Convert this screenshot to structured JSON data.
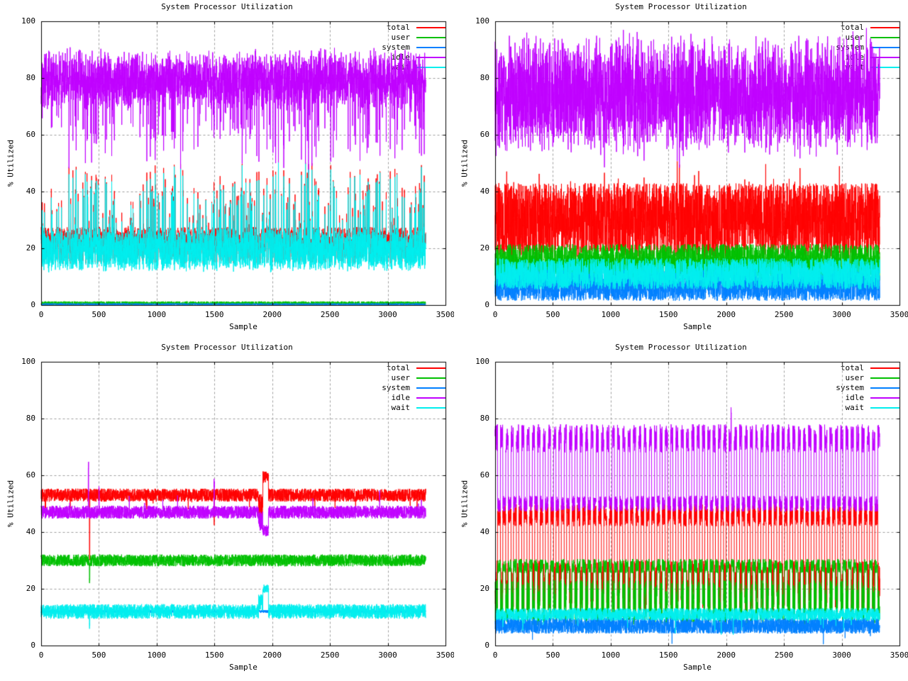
{
  "page": {
    "background": "#ffffff"
  },
  "palette": {
    "total": "#ff0000",
    "user": "#00c000",
    "system": "#0080ff",
    "idle": "#c000ff",
    "wait": "#00eeee",
    "grid": "#9e9e9e",
    "axis": "#000000",
    "text": "#000000"
  },
  "chart_data": [
    {
      "type": "line",
      "position": "top-left",
      "title": "System Processor Utilization",
      "xlabel": "Sample",
      "ylabel": "% Utilized",
      "xlim": [
        0,
        3500
      ],
      "ylim": [
        0,
        100
      ],
      "xticks": [
        0,
        500,
        1000,
        1500,
        2000,
        2500,
        3000,
        3500
      ],
      "yticks": [
        0,
        20,
        40,
        60,
        80,
        100
      ],
      "grid": true,
      "legend_position": "top-right",
      "n_samples": 3330,
      "seed": 101,
      "series": [
        {
          "name": "total",
          "color": "#ff0000",
          "approx_range": "noisy band ~14-28, spikes to ~50, mostly hidden under wait",
          "synth": {
            "base": {
              "mean": 21,
              "amp": 6.5
            },
            "spikes": {
              "prob": 0.1,
              "up": 26
            },
            "clamp": [
              4,
              100
            ]
          }
        },
        {
          "name": "user",
          "color": "#00c000",
          "approx_range": "flat ~0-2 along baseline",
          "synth": {
            "base": {
              "mean": 0.6,
              "amp": 0.7
            },
            "clamp": [
              0,
              3
            ]
          }
        },
        {
          "name": "system",
          "color": "#0080ff",
          "approx_range": "flat ~0-1, hidden under user",
          "synth": {
            "base": {
              "mean": 0.3,
              "amp": 0.3
            },
            "clamp": [
              0,
              2
            ]
          }
        },
        {
          "name": "idle",
          "color": "#c000ff",
          "approx_range": "dense band ~65-92, dips to ~45-55",
          "synth": {
            "mirror": {
              "source": "total",
              "k": 100.5,
              "amp": 5
            },
            "clamp": [
              0,
              94
            ]
          }
        },
        {
          "name": "wait",
          "color": "#00eeee",
          "approx_range": "dense band ~12-26, spikes to ~48, tracks just below total",
          "synth": {
            "offset": {
              "source": "total",
              "min": -3.2,
              "max": -0.2
            },
            "clamp": [
              0,
              100
            ]
          }
        }
      ]
    },
    {
      "type": "line",
      "position": "top-right",
      "title": "System Processor Utilization",
      "xlabel": "Sample",
      "ylabel": "% Utilized",
      "xlim": [
        0,
        3500
      ],
      "ylim": [
        0,
        100
      ],
      "xticks": [
        0,
        500,
        1000,
        1500,
        2000,
        2500,
        3000,
        3500
      ],
      "yticks": [
        0,
        20,
        40,
        60,
        80,
        100
      ],
      "grid": true,
      "legend_position": "top-right",
      "n_samples": 3330,
      "seed": 202,
      "series": [
        {
          "name": "total",
          "color": "#ff0000",
          "approx_range": "wide noisy band ~12-48",
          "synth": {
            "base": {
              "mean": 30,
              "amp": 13
            },
            "spikes": {
              "prob": 0.06,
              "up": 9,
              "down": 9
            },
            "clamp": [
              2,
              55
            ]
          }
        },
        {
          "name": "user",
          "color": "#00c000",
          "approx_range": "band ~8-24",
          "synth": {
            "base": {
              "mean": 15,
              "amp": 6.5
            },
            "clamp": [
              0,
              28
            ]
          }
        },
        {
          "name": "system",
          "color": "#0080ff",
          "approx_range": "band ~1-13",
          "synth": {
            "base": {
              "mean": 7,
              "amp": 5.5
            },
            "clamp": [
              0,
              20
            ]
          }
        },
        {
          "name": "idle",
          "color": "#c000ff",
          "approx_range": "wide band ~52-100",
          "synth": {
            "mirror": {
              "source": "total",
              "k": 104,
              "amp": 9
            },
            "spikes": {
              "prob": 0.05,
              "up": 7
            },
            "clamp": [
              0,
              100
            ]
          }
        },
        {
          "name": "wait",
          "color": "#00eeee",
          "approx_range": "band ~5-17",
          "synth": {
            "base": {
              "mean": 11,
              "amp": 5.5
            },
            "clamp": [
              0,
              22
            ]
          }
        }
      ]
    },
    {
      "type": "line",
      "position": "bottom-left",
      "title": "System Processor Utilization",
      "xlabel": "Sample",
      "ylabel": "% Utilized",
      "xlim": [
        0,
        3500
      ],
      "ylim": [
        0,
        100
      ],
      "xticks": [
        0,
        500,
        1000,
        1500,
        2000,
        2500,
        3000,
        3500
      ],
      "yticks": [
        0,
        20,
        40,
        60,
        80,
        100
      ],
      "grid": true,
      "legend_position": "top-right",
      "n_samples": 3330,
      "seed": 303,
      "series": [
        {
          "name": "total",
          "color": "#ff0000",
          "approx_range": "tight band ~51-56; dip to ~30 near sample 420; excursion to ~60-62 near samples 1920-1970",
          "synth": {
            "base": {
              "mean": 53,
              "amp": 2.3
            },
            "spikes": {
              "prob": 0.008,
              "down": 5
            },
            "events": [
              {
                "x0": 418,
                "x1": 422,
                "mean": 30,
                "amp": 2.5
              },
              {
                "x0": 1497,
                "x1": 1500,
                "mean": 42,
                "amp": 2
              },
              {
                "x0": 1882,
                "x1": 1920,
                "mean": 49,
                "amp": 4.5
              },
              {
                "x0": 1920,
                "x1": 1968,
                "mean": 59.5,
                "amp": 2.2
              }
            ]
          }
        },
        {
          "name": "user",
          "color": "#00c000",
          "approx_range": "tight band ~28-32; dip to ~22 near sample 420",
          "synth": {
            "base": {
              "mean": 30,
              "amp": 2.1
            },
            "events": [
              {
                "x0": 418,
                "x1": 422,
                "mean": 23,
                "amp": 1.5
              }
            ]
          }
        },
        {
          "name": "system",
          "color": "#0080ff",
          "approx_range": "flat ~12, mostly hidden under wait",
          "synth": {
            "base": {
              "mean": 12,
              "amp": 0.5
            }
          }
        },
        {
          "name": "idle",
          "color": "#c000ff",
          "approx_range": "tight band ~44-50; spike to ~65 near 410; dip to ~39-44 near 1880-1970",
          "synth": {
            "base": {
              "mean": 47,
              "amp": 2.3
            },
            "spikes": {
              "prob": 0.006,
              "up": 6
            },
            "events": [
              {
                "x0": 408,
                "x1": 412,
                "mean": 64,
                "amp": 3
              },
              {
                "x0": 500,
                "x1": 503,
                "mean": 55,
                "amp": 1.5
              },
              {
                "x0": 1497,
                "x1": 1500,
                "mean": 57,
                "amp": 2
              },
              {
                "x0": 1882,
                "x1": 1920,
                "mean": 43.5,
                "amp": 4
              },
              {
                "x0": 1920,
                "x1": 1968,
                "mean": 40.5,
                "amp": 2
              }
            ]
          }
        },
        {
          "name": "wait",
          "color": "#00eeee",
          "approx_range": "band ~9-15; rise to ~20 near samples 1920-1970; dip to ~7 near 420",
          "synth": {
            "base": {
              "mean": 12,
              "amp": 2.6
            },
            "events": [
              {
                "x0": 418,
                "x1": 422,
                "mean": 7,
                "amp": 1.5
              },
              {
                "x0": 1882,
                "x1": 1920,
                "mean": 15,
                "amp": 3
              },
              {
                "x0": 1920,
                "x1": 1968,
                "mean": 20,
                "amp": 1.5
              }
            ]
          }
        }
      ]
    },
    {
      "type": "line",
      "position": "bottom-right",
      "title": "System Processor Utilization",
      "xlabel": "Sample",
      "ylabel": "% Utilized",
      "xlim": [
        0,
        3500
      ],
      "ylim": [
        0,
        100
      ],
      "xticks": [
        0,
        500,
        1000,
        1500,
        2000,
        2500,
        3000,
        3500
      ],
      "yticks": [
        0,
        20,
        40,
        60,
        80,
        100
      ],
      "grid": true,
      "legend_position": "top-right",
      "n_samples": 3330,
      "seed": 404,
      "series": [
        {
          "name": "total",
          "color": "#ff0000",
          "approx_range": "oscillates ~period 46: high ~42-50, low ~12-30",
          "synth": {
            "osc": {
              "period": 46,
              "duty": 0.45,
              "invert": true,
              "high": {
                "mean": 46,
                "amp": 4
              },
              "low": {
                "mean": 21,
                "amp": 9
              }
            },
            "clamp": [
              8,
              55
            ]
          }
        },
        {
          "name": "user",
          "color": "#00c000",
          "approx_range": "oscillates: high ~25-30, low ~8-24",
          "synth": {
            "osc": {
              "period": 46,
              "duty": 0.45,
              "invert": true,
              "high": {
                "mean": 28,
                "amp": 2.5
              },
              "low": {
                "mean": 15,
                "amp": 8
              }
            },
            "clamp": [
              3,
              33
            ]
          }
        },
        {
          "name": "system",
          "color": "#0080ff",
          "approx_range": "band ~4-10, partly hidden under wait",
          "synth": {
            "base": {
              "mean": 7,
              "amp": 2.8
            },
            "spikes": {
              "prob": 0.004,
              "down": 5
            },
            "clamp": [
              0,
              14
            ]
          }
        },
        {
          "name": "idle",
          "color": "#c000ff",
          "approx_range": "oscillates: spikes ~68-80, valleys ~47-53; lone spike ~85 near sample 2043",
          "synth": {
            "osc": {
              "period": 46,
              "duty": 0.45,
              "high": {
                "mean": 73,
                "amp": 5
              },
              "low": {
                "mean": 50,
                "amp": 2.8
              }
            },
            "events": [
              {
                "x0": 2042,
                "x1": 2045,
                "mean": 83,
                "amp": 1.5
              }
            ],
            "clamp": [
              0,
              88
            ]
          }
        },
        {
          "name": "wait",
          "color": "#00eeee",
          "approx_range": "band ~9-13, rare dips to ~3",
          "synth": {
            "base": {
              "mean": 11,
              "amp": 2.2
            },
            "spikes": {
              "prob": 0.01,
              "down": 6
            },
            "clamp": [
              2,
              20
            ]
          }
        }
      ]
    }
  ]
}
